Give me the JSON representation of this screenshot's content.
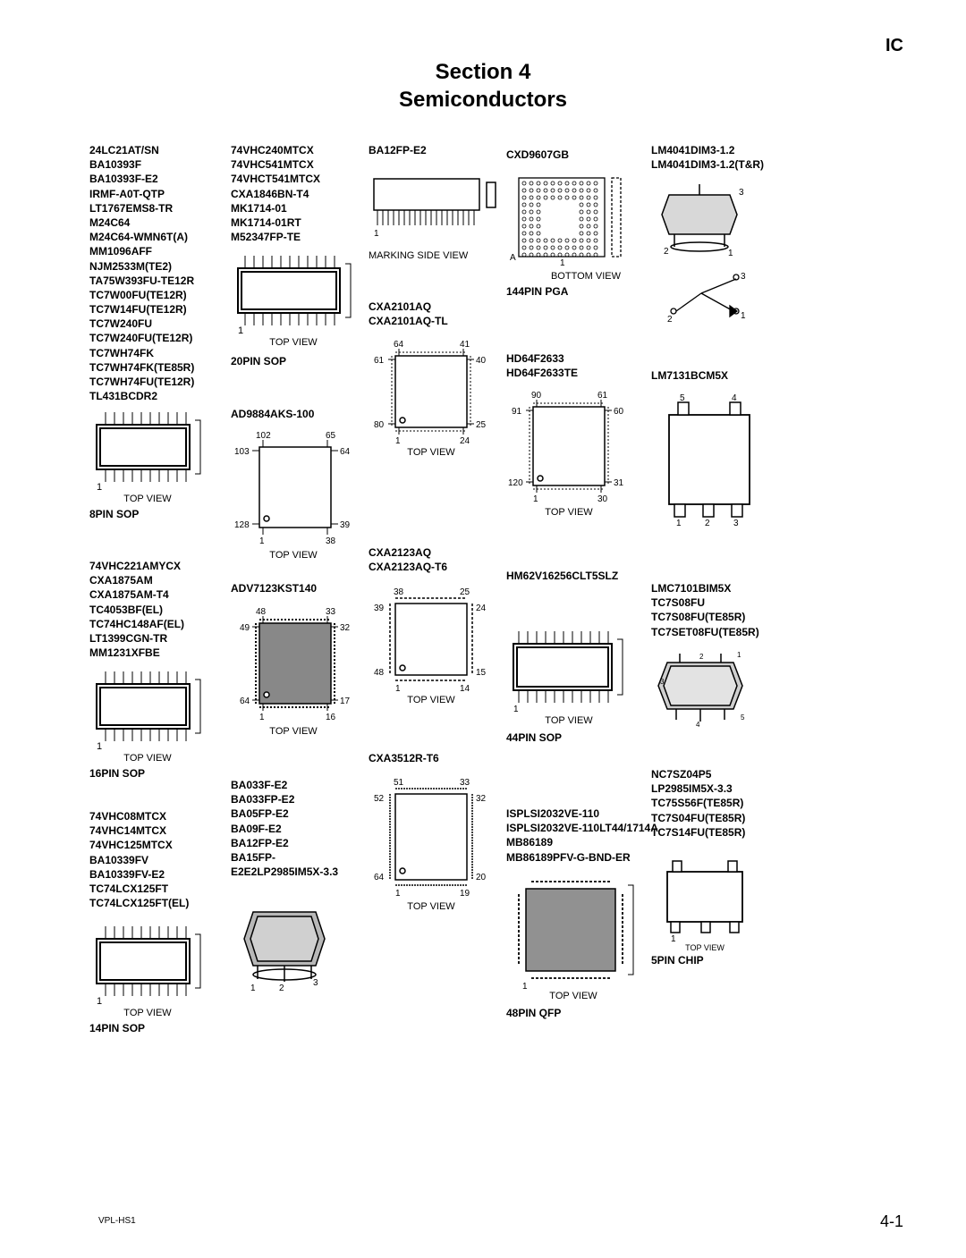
{
  "header_ic": "IC",
  "section_title_line1": "Section 4",
  "section_title_line2": "Semiconductors",
  "footer_left": "VPL-HS1",
  "footer_right": "4-1",
  "col1": {
    "list1": [
      "24LC21AT/SN",
      "BA10393F",
      "BA10393F-E2",
      "IRMF-A0T-QTP",
      "LT1767EMS8-TR",
      "M24C64",
      "M24C64-WMN6T(A)",
      "MM1096AFF",
      "NJM2533M(TE2)",
      "TA75W393FU-TE12R",
      "TC7W00FU(TE12R)",
      "TC7W14FU(TE12R)",
      "TC7W240FU",
      "TC7W240FU(TE12R)",
      "TC7WH74FK",
      "TC7WH74FK(TE85R)",
      "TC7WH74FU(TE12R)",
      "TL431BCDR2"
    ],
    "pkg1_label": "8PIN SOP",
    "pkg1_view": "TOP VIEW",
    "list2": [
      "74VHC221AMYCX",
      "CXA1875AM",
      "CXA1875AM-T4",
      "TC4053BF(EL)",
      "TC74HC148AF(EL)",
      "LT1399CGN-TR",
      "MM1231XFBE"
    ],
    "pkg2_label": "16PIN SOP",
    "pkg2_view": "TOP VIEW",
    "list3": [
      "74VHC08MTCX",
      "74VHC14MTCX",
      "74VHC125MTCX",
      "BA10339FV",
      "BA10339FV-E2",
      "TC74LCX125FT",
      "TC74LCX125FT(EL)"
    ],
    "pkg3_label": "14PIN SOP",
    "pkg3_view": "TOP VIEW"
  },
  "col2": {
    "list1": [
      "74VHC240MTCX",
      "74VHC541MTCX",
      "74VHCT541MTCX",
      "CXA1846BN-T4",
      "MK1714-01",
      "MK1714-01RT",
      "M52347FP-TE"
    ],
    "pkg1_label": "20PIN SOP",
    "pkg1_view": "TOP VIEW",
    "list2": [
      "AD9884AKS-100"
    ],
    "pkg2_view": "TOP VIEW",
    "pkg2_pins": {
      "tl": "102",
      "tr": "65",
      "rt": "64",
      "rb": "39",
      "br": "38",
      "bl": "1",
      "lt": "103",
      "lb": "128"
    },
    "list3": [
      "ADV7123KST140"
    ],
    "pkg3_view": "TOP VIEW",
    "pkg3_pins": {
      "tl": "48",
      "tr": "33",
      "rt": "32",
      "rb": "17",
      "br": "16",
      "bl": "1",
      "lt": "49",
      "lb": "64"
    },
    "list4": [
      "BA033F-E2",
      "BA033FP-E2",
      "BA05FP-E2",
      "BA09F-E2",
      "BA12FP-E2",
      "BA15FP-",
      "E2E2LP2985IM5X-3.3"
    ],
    "pkg4_pins": {
      "p1": "1",
      "p2": "2",
      "p3": "3"
    }
  },
  "col3": {
    "list1": [
      "BA12FP-E2"
    ],
    "pkg1_label": "MARKING SIDE VIEW",
    "pkg1_pin": "1",
    "list2": [
      "CXA2101AQ",
      "CXA2101AQ-TL"
    ],
    "pkg2_view": "TOP VIEW",
    "pkg2_pins": {
      "tl": "64",
      "tr": "41",
      "rt": "40",
      "rb": "25",
      "br": "24",
      "bl": "1",
      "lt": "61",
      "lb": "80"
    },
    "list3": [
      "CXA2123AQ",
      "CXA2123AQ-T6"
    ],
    "pkg3_view": "TOP VIEW",
    "pkg3_pins": {
      "tl": "38",
      "tr": "25",
      "rt": "24",
      "rb": "15",
      "br": "14",
      "bl": "1",
      "lt": "39",
      "lb": "48"
    },
    "list4": [
      "CXA3512R-T6"
    ],
    "pkg4_view": "TOP VIEW",
    "pkg4_pins": {
      "tl": "51",
      "tr": "33",
      "rt": "32",
      "rb": "20",
      "br": "19",
      "bl": "1",
      "lt": "52",
      "lb": "64"
    }
  },
  "col4": {
    "list1": [
      "CXD9607GB"
    ],
    "pkg1_label": "144PIN PGA",
    "pkg1_view": "BOTTOM VIEW",
    "pkg1_corner": "A",
    "pkg1_pin": "1",
    "list2": [
      "HD64F2633",
      "HD64F2633TE"
    ],
    "pkg2_view": "TOP VIEW",
    "pkg2_pins": {
      "tl": "90",
      "tr": "61",
      "rt": "60",
      "rb": "31",
      "br": "30",
      "bl": "1",
      "lt": "91",
      "lb": "120"
    },
    "list3": [
      "HM62V16256CLT5SLZ"
    ],
    "pkg3_label": "44PIN SOP",
    "pkg3_view": "TOP VIEW",
    "pkg3_pin": "1",
    "list4": [
      "ISPLSI2032VE-110",
      "ISPLSI2032VE-110LT44/1714A",
      "MB86189",
      "MB86189PFV-G-BND-ER"
    ],
    "pkg4_label": "48PIN QFP",
    "pkg4_view": "TOP VIEW",
    "pkg4_pin": "1"
  },
  "col5": {
    "list1": [
      "LM4041DIM3-1.2",
      "LM4041DIM3-1.2(T&R)"
    ],
    "pkg1_pins": {
      "p1": "1",
      "p2": "2",
      "p3": "3"
    },
    "pkg1b_pins": {
      "p1": "1",
      "p2": "2",
      "p3": "3"
    },
    "list2": [
      "LM7131BCM5X"
    ],
    "pkg2_pins": {
      "p1": "1",
      "p2": "2",
      "p3": "3",
      "p4": "4",
      "p5": "5"
    },
    "list3": [
      "LMC7101BIM5X",
      "TC7S08FU",
      "TC7S08FU(TE85R)",
      "TC7SET08FU(TE85R)"
    ],
    "pkg3_pins": {
      "p1": "1",
      "p2": "2",
      "p3": "3",
      "p4": "4",
      "p5": "5"
    },
    "list4": [
      "NC7SZ04P5",
      "LP2985IM5X-3.3",
      "TC75S56F(TE85R)",
      "TC7S04FU(TE85R)",
      "TC7S14FU(TE85R)"
    ],
    "pkg4_label": "5PIN CHIP",
    "pkg4_view": "TOP VIEW",
    "pkg4_pin": "1"
  }
}
